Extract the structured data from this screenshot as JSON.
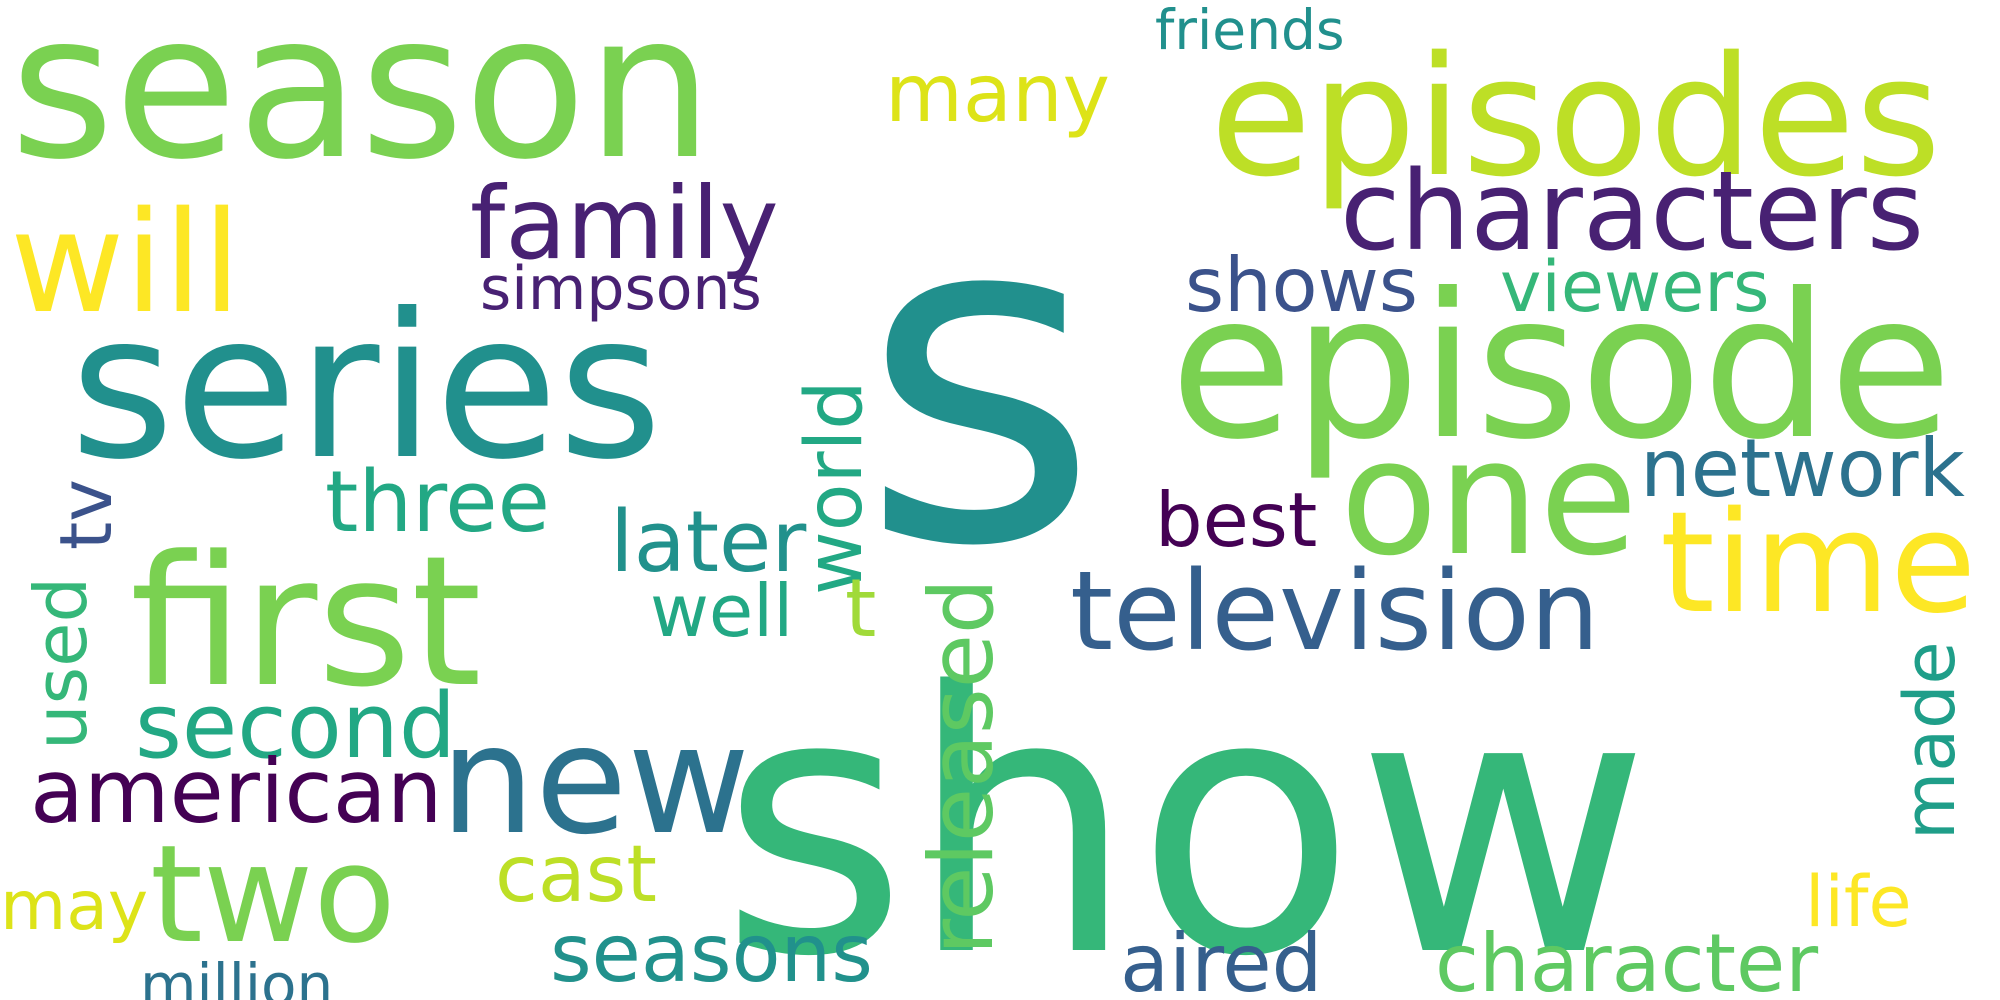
{
  "words": [
    {
      "text": "s",
      "color": "#21908d"
    },
    {
      "text": "show",
      "color": "#35b779"
    },
    {
      "text": "season",
      "color": "#7ad151"
    },
    {
      "text": "episodes",
      "color": "#bddf26"
    },
    {
      "text": "episode",
      "color": "#7ad151"
    },
    {
      "text": "series",
      "color": "#21908d"
    },
    {
      "text": "first",
      "color": "#7ad151"
    },
    {
      "text": "one",
      "color": "#7ad151"
    },
    {
      "text": "characters",
      "color": "#482173"
    },
    {
      "text": "will",
      "color": "#fde725"
    },
    {
      "text": "time",
      "color": "#fde725"
    },
    {
      "text": "new",
      "color": "#2c728e"
    },
    {
      "text": "two",
      "color": "#7ad151"
    },
    {
      "text": "television",
      "color": "#355f8d"
    },
    {
      "text": "family",
      "color": "#482173"
    },
    {
      "text": "many",
      "color": "#dde318"
    },
    {
      "text": "friends",
      "color": "#21908d"
    },
    {
      "text": "simpsons",
      "color": "#482173"
    },
    {
      "text": "shows",
      "color": "#3b528b"
    },
    {
      "text": "viewers",
      "color": "#35b779"
    },
    {
      "text": "world",
      "color": "#22a884"
    },
    {
      "text": "three",
      "color": "#22a884"
    },
    {
      "text": "later",
      "color": "#21918c"
    },
    {
      "text": "network",
      "color": "#2c728e"
    },
    {
      "text": "best",
      "color": "#440154"
    },
    {
      "text": "tv",
      "color": "#3b528b"
    },
    {
      "text": "well",
      "color": "#22a884"
    },
    {
      "text": "t",
      "color": "#a0da39"
    },
    {
      "text": "used",
      "color": "#35b779"
    },
    {
      "text": "released",
      "color": "#5ec962"
    },
    {
      "text": "made",
      "color": "#1f9e89"
    },
    {
      "text": "second",
      "color": "#22a884"
    },
    {
      "text": "american",
      "color": "#440154"
    },
    {
      "text": "cast",
      "color": "#bddf26"
    },
    {
      "text": "may",
      "color": "#dde318"
    },
    {
      "text": "life",
      "color": "#fde725"
    },
    {
      "text": "seasons",
      "color": "#21918c"
    },
    {
      "text": "aired",
      "color": "#355f8d"
    },
    {
      "text": "character",
      "color": "#5ec962"
    },
    {
      "text": "million",
      "color": "#2c728e"
    }
  ]
}
